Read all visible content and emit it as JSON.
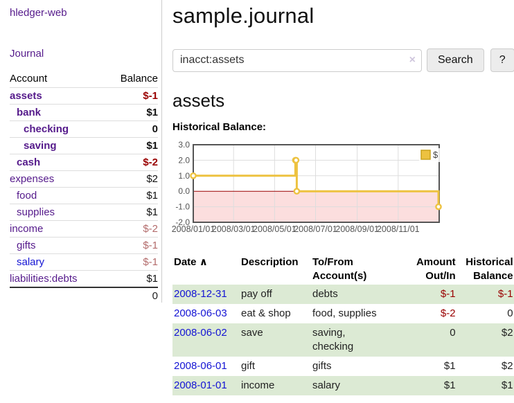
{
  "app": {
    "brand": "hledger-web",
    "nav_journal": "Journal"
  },
  "colors": {
    "purple": "#551a8b",
    "blue": "#1414d4",
    "negative_strong": "#990000",
    "negative_muted": "#b36b6b",
    "row_stripe": "#dcead4",
    "accent_yellow": "#edc240"
  },
  "sidebar": {
    "header": {
      "account": "Account",
      "balance": "Balance"
    },
    "accounts": [
      {
        "name": "assets",
        "balance": "$-1",
        "depth": 0,
        "bold": true,
        "name_color": "purple",
        "balance_color": "neg-strong"
      },
      {
        "name": "bank",
        "balance": "$1",
        "depth": 1,
        "bold": true,
        "name_color": "purple",
        "balance_color": "normal"
      },
      {
        "name": "checking",
        "balance": "0",
        "depth": 2,
        "bold": true,
        "name_color": "purple",
        "balance_color": "normal"
      },
      {
        "name": "saving",
        "balance": "$1",
        "depth": 2,
        "bold": true,
        "name_color": "purple",
        "balance_color": "normal"
      },
      {
        "name": "cash",
        "balance": "$-2",
        "depth": 1,
        "bold": true,
        "name_color": "purple",
        "balance_color": "neg-strong"
      },
      {
        "name": "expenses",
        "balance": "$2",
        "depth": 0,
        "bold": false,
        "name_color": "purple",
        "balance_color": "normal"
      },
      {
        "name": "food",
        "balance": "$1",
        "depth": 1,
        "bold": false,
        "name_color": "purple",
        "balance_color": "normal"
      },
      {
        "name": "supplies",
        "balance": "$1",
        "depth": 1,
        "bold": false,
        "name_color": "purple",
        "balance_color": "normal"
      },
      {
        "name": "income",
        "balance": "$-2",
        "depth": 0,
        "bold": false,
        "name_color": "purple",
        "balance_color": "neg-muted"
      },
      {
        "name": "gifts",
        "balance": "$-1",
        "depth": 1,
        "bold": false,
        "name_color": "purple",
        "balance_color": "neg-muted"
      },
      {
        "name": "salary",
        "balance": "$-1",
        "depth": 1,
        "bold": false,
        "name_color": "blue",
        "balance_color": "neg-muted"
      },
      {
        "name": "liabilities:debts",
        "balance": "$1",
        "depth": 0,
        "bold": false,
        "name_color": "purple",
        "balance_color": "normal"
      }
    ],
    "total": "0"
  },
  "header": {
    "title": "sample.journal"
  },
  "search": {
    "value": "inacct:assets",
    "clear_icon": "×",
    "button": "Search",
    "help_button": "?"
  },
  "account_page": {
    "heading": "assets",
    "chart_label": "Historical Balance:"
  },
  "chart_data": {
    "type": "line",
    "title": "Historical Balance",
    "step": true,
    "series": [
      {
        "name": "$",
        "color": "#edc240",
        "points": [
          [
            "2008-01-01",
            1
          ],
          [
            "2008-06-01",
            2
          ],
          [
            "2008-06-02",
            2
          ],
          [
            "2008-06-03",
            0
          ],
          [
            "2008-12-31",
            -1
          ]
        ]
      }
    ],
    "xlim": [
      "2008-01-01",
      "2009-01-01"
    ],
    "ylim": [
      -2,
      3
    ],
    "x_ticks": [
      {
        "label": "2008/01/01",
        "date": "2008-01-01"
      },
      {
        "label": "2008/03/01",
        "date": "2008-03-01"
      },
      {
        "label": "2008/05/01",
        "date": "2008-05-01"
      },
      {
        "label": "2008/07/01",
        "date": "2008-07-01"
      },
      {
        "label": "2008/09/01",
        "date": "2008-09-01"
      },
      {
        "label": "2008/11/01",
        "date": "2008-11-01"
      }
    ],
    "y_ticks": [
      {
        "label": "3.0",
        "value": 3
      },
      {
        "label": "2.0",
        "value": 2
      },
      {
        "label": "1.0",
        "value": 1
      },
      {
        "label": "0.0",
        "value": 0
      },
      {
        "label": "-1.0",
        "value": -1
      },
      {
        "label": "-2.0",
        "value": -2
      }
    ],
    "legend": {
      "label": "$",
      "position": "top-right"
    },
    "grid": true,
    "grid_color": "#ddd",
    "border_color": "#555",
    "tick_label_color": "#545454",
    "zero_line_color": "#990000",
    "negative_region_color": "#fcdede"
  },
  "register": {
    "col_date": "Date",
    "col_sort_icon": "∧",
    "col_description": "Description",
    "col_accounts": "To/From Account(s)",
    "col_amount": "Amount Out/In",
    "col_balance": "Historical Balance",
    "rows": [
      {
        "date": "2008-12-31",
        "description": "pay off",
        "accounts": "debts",
        "amount": "$-1",
        "amount_negative": true,
        "balance": "$-1",
        "balance_negative": true
      },
      {
        "date": "2008-06-03",
        "description": "eat & shop",
        "accounts": "food, supplies",
        "amount": "$-2",
        "amount_negative": true,
        "balance": "0",
        "balance_negative": false
      },
      {
        "date": "2008-06-02",
        "description": "save",
        "accounts": "saving, checking",
        "amount": "0",
        "amount_negative": false,
        "balance": "$2",
        "balance_negative": false
      },
      {
        "date": "2008-06-01",
        "description": "gift",
        "accounts": "gifts",
        "amount": "$1",
        "amount_negative": false,
        "balance": "$2",
        "balance_negative": false
      },
      {
        "date": "2008-01-01",
        "description": "income",
        "accounts": "salary",
        "amount": "$1",
        "amount_negative": false,
        "balance": "$1",
        "balance_negative": false
      }
    ]
  }
}
